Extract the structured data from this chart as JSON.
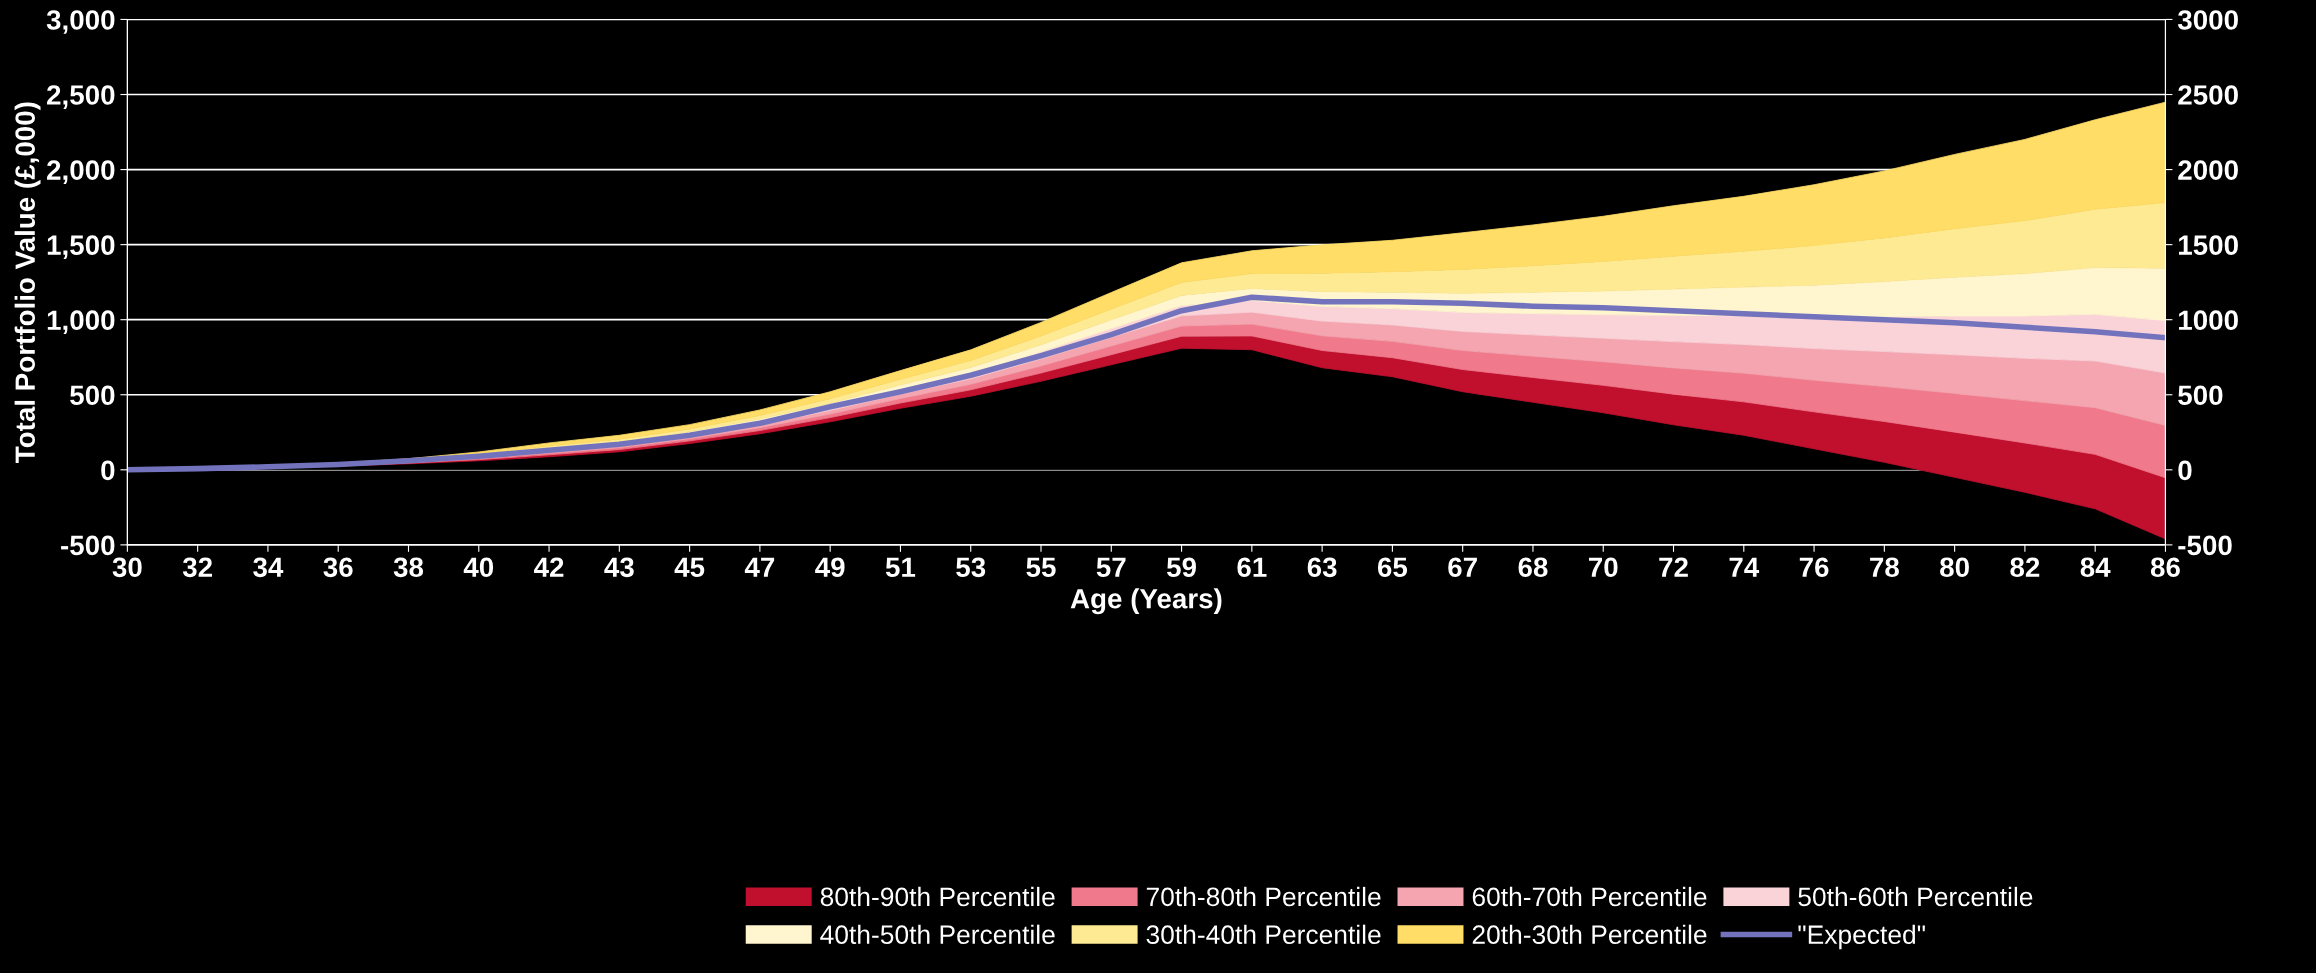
{
  "chart_data": {
    "type": "area",
    "stacked": true,
    "xlabel": "Age (Years)",
    "ylabel": "Total Portfolio Value (£,000)",
    "categories": [
      "30",
      "32",
      "34",
      "36",
      "38",
      "40",
      "42",
      "43",
      "45",
      "47",
      "49",
      "51",
      "53",
      "55",
      "57",
      "59",
      "61",
      "63",
      "65",
      "67",
      "68",
      "70",
      "72",
      "74",
      "76",
      "78",
      "80",
      "82",
      "84",
      "86"
    ],
    "series": [
      {
        "color": "#000000",
        "values": [
          0,
          5,
          15,
          25,
          40,
          60,
          87,
          120,
          175,
          240,
          320,
          410,
          490,
          590,
          700,
          810,
          800,
          680,
          620,
          520,
          450,
          380,
          300,
          230,
          140,
          50,
          -50,
          -150,
          -260,
          -460
        ]
      },
      {
        "name": "80th-90th Percentile",
        "color": "#c0102e",
        "values": [
          0,
          1,
          1,
          3,
          5,
          8,
          13,
          15,
          18,
          22,
          28,
          35,
          43,
          55,
          67,
          80,
          92,
          115,
          127,
          148,
          165,
          183,
          204,
          223,
          246,
          272,
          301,
          329,
          363,
          407
        ]
      },
      {
        "name": "70th-80th Percentile",
        "color": "#f07a8c",
        "values": [
          0,
          1,
          1,
          2,
          4,
          7,
          11,
          13,
          15,
          19,
          24,
          30,
          37,
          47,
          58,
          68,
          79,
          98,
          109,
          127,
          142,
          157,
          175,
          191,
          211,
          233,
          258,
          282,
          311,
          349
        ]
      },
      {
        "name": "60th-70th Percentile",
        "color": "#f5a5b0",
        "values": [
          0,
          1,
          1,
          2,
          4,
          7,
          11,
          13,
          15,
          19,
          24,
          30,
          37,
          47,
          58,
          68,
          79,
          98,
          109,
          127,
          142,
          157,
          175,
          191,
          211,
          233,
          258,
          282,
          311,
          349
        ]
      },
      {
        "name": "50th-60th Percentile",
        "color": "#fad3d8",
        "values": [
          0,
          1,
          1,
          2,
          4,
          7,
          11,
          13,
          15,
          19,
          24,
          30,
          37,
          47,
          58,
          68,
          79,
          98,
          109,
          127,
          142,
          157,
          175,
          191,
          211,
          233,
          258,
          282,
          311,
          349
        ]
      },
      {
        "name": "40th-50th Percentile",
        "color": "#fff6d0",
        "values": [
          0,
          1,
          1,
          2,
          4,
          7,
          11,
          13,
          15,
          19,
          24,
          30,
          37,
          47,
          58,
          68,
          79,
          98,
          109,
          127,
          142,
          157,
          175,
          191,
          211,
          233,
          258,
          282,
          311,
          349
        ]
      },
      {
        "name": "30th-40th Percentile",
        "color": "#ffea94",
        "values": [
          0,
          1,
          2,
          3,
          5,
          9,
          14,
          17,
          19,
          24,
          30,
          38,
          47,
          59,
          72,
          86,
          99,
          123,
          137,
          159,
          177,
          197,
          219,
          239,
          264,
          291,
          323,
          353,
          389,
          437
        ]
      },
      {
        "name": "20th-30th Percentile",
        "color": "#ffdd66",
        "values": [
          0,
          1,
          2,
          5,
          8,
          14,
          21,
          26,
          29,
          37,
          46,
          58,
          71,
          90,
          110,
          131,
          152,
          189,
          209,
          244,
          271,
          301,
          336,
          366,
          405,
          446,
          495,
          541,
          596,
          669
        ]
      },
      {
        "name": "\"Expected\"",
        "type": "line",
        "color": "#7373bd",
        "values": [
          0,
          8,
          20,
          35,
          60,
          90,
          130,
          170,
          230,
          310,
          420,
          520,
          630,
          760,
          900,
          1060,
          1150,
          1120,
          1120,
          1110,
          1090,
          1080,
          1060,
          1040,
          1020,
          1000,
          980,
          950,
          920,
          880
        ]
      }
    ],
    "ylim": [
      -500,
      3000
    ],
    "yticks": [
      {
        "value": -500,
        "label": "-500"
      },
      0,
      {
        "value": 500,
        "label": "500"
      },
      {
        "value": 1000,
        "label": "1,000"
      },
      {
        "value": 1500,
        "label": "1,500"
      },
      {
        "value": 2000,
        "label": "2,000"
      },
      {
        "value": 2500,
        "label": "2,500"
      },
      {
        "value": 3000,
        "label": "3,000"
      }
    ],
    "y2lim": [
      -500,
      3000
    ],
    "y2ticks": [
      -500,
      0,
      500,
      1000,
      1500,
      2000,
      2500,
      3000
    ],
    "grid": "y",
    "legend": "bottom",
    "marker": "none",
    "line_style": "solid"
  }
}
